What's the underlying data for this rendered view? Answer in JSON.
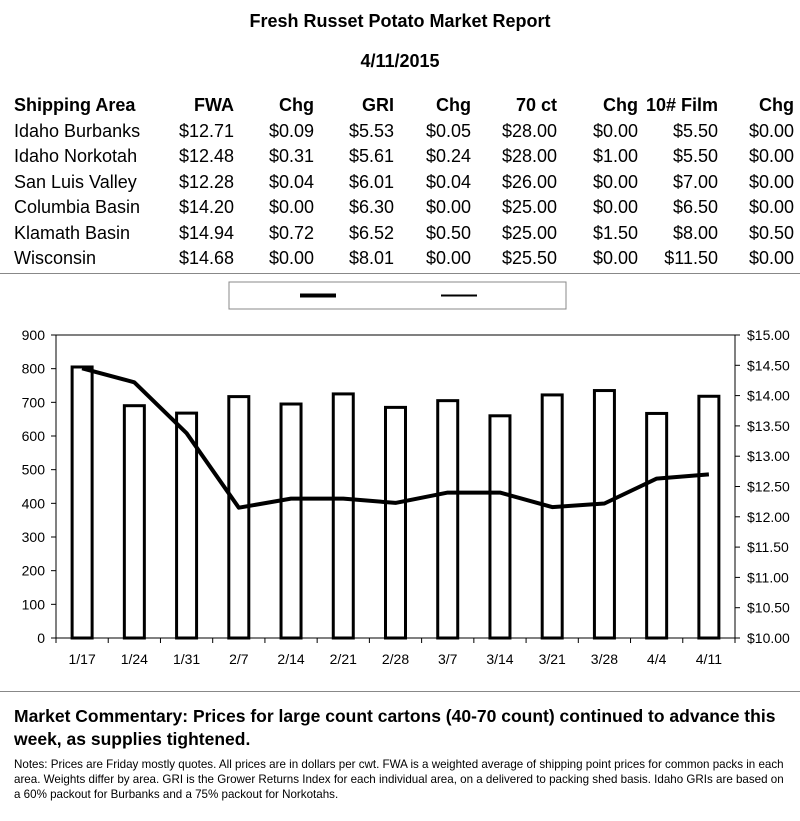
{
  "report": {
    "title": "Fresh Russet Potato Market Report",
    "date": "4/11/2015"
  },
  "table": {
    "headers": [
      "Shipping Area",
      "FWA",
      "Chg",
      "GRI",
      "Chg",
      "70 ct",
      "Chg",
      "10# Film",
      "Chg"
    ],
    "rows": [
      [
        "Idaho Burbanks",
        "$12.71",
        "$0.09",
        "$5.53",
        "$0.05",
        "$28.00",
        "$0.00",
        "$5.50",
        "$0.00"
      ],
      [
        "Idaho Norkotah",
        "$12.48",
        "$0.31",
        "$5.61",
        "$0.24",
        "$28.00",
        "$1.00",
        "$5.50",
        "$0.00"
      ],
      [
        "San Luis Valley",
        "$12.28",
        "$0.04",
        "$6.01",
        "$0.04",
        "$26.00",
        "$0.00",
        "$7.00",
        "$0.00"
      ],
      [
        "Columbia Basin",
        "$14.20",
        "$0.00",
        "$6.30",
        "$0.00",
        "$25.00",
        "$0.00",
        "$6.50",
        "$0.00"
      ],
      [
        "Klamath Basin",
        "$14.94",
        "$0.72",
        "$6.52",
        "$0.50",
        "$25.00",
        "$1.50",
        "$8.00",
        "$0.50"
      ],
      [
        "Wisconsin",
        "$14.68",
        "$0.00",
        "$8.01",
        "$0.00",
        "$25.50",
        "$0.00",
        "$11.50",
        "$0.00"
      ]
    ]
  },
  "chart_data": {
    "type": "bar",
    "categories": [
      "1/17",
      "1/24",
      "1/31",
      "2/7",
      "2/14",
      "2/21",
      "2/28",
      "3/7",
      "3/14",
      "3/21",
      "3/28",
      "4/4",
      "4/11"
    ],
    "series": [
      {
        "kind": "bar",
        "axis": "left",
        "values": [
          805,
          690,
          668,
          717,
          695,
          725,
          685,
          705,
          660,
          722,
          735,
          667,
          718
        ]
      },
      {
        "kind": "line",
        "axis": "right",
        "values": [
          14.45,
          14.22,
          13.38,
          12.15,
          12.3,
          12.3,
          12.23,
          12.4,
          12.4,
          12.16,
          12.22,
          12.63,
          12.7
        ]
      }
    ],
    "ylim_left": [
      0,
      900
    ],
    "ylim_right": [
      10.0,
      15.0
    ],
    "yticks_left": [
      "0",
      "100",
      "200",
      "300",
      "400",
      "500",
      "600",
      "700",
      "800",
      "900"
    ],
    "yticks_right": [
      "$10.00",
      "$10.50",
      "$11.00",
      "$11.50",
      "$12.00",
      "$12.50",
      "$13.00",
      "$13.50",
      "$14.00",
      "$14.50",
      "$15.00"
    ],
    "legend_position": "top-center",
    "grid": false
  },
  "commentary": "Market Commentary: Prices for large count cartons (40-70 count) continued to advance this week, as supplies tightened.",
  "notes": "Notes: Prices are Friday mostly quotes. All prices are in dollars per cwt. FWA is a weighted average of shipping point prices for common packs in each area. Weights differ by area. GRI is the Grower Returns Index for each individual area, on a delivered to packing shed basis. Idaho GRIs are based on a 60% packout for Burbanks and a 75% packout for Norkotahs."
}
